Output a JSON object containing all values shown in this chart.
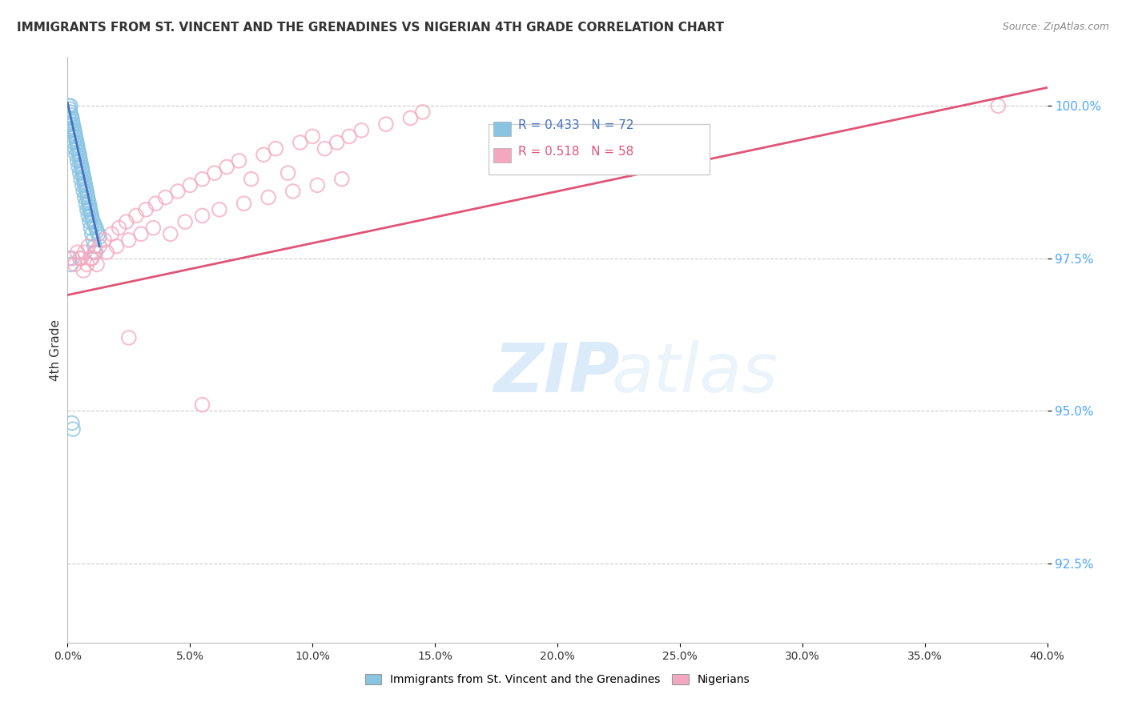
{
  "title": "IMMIGRANTS FROM ST. VINCENT AND THE GRENADINES VS NIGERIAN 4TH GRADE CORRELATION CHART",
  "source": "Source: ZipAtlas.com",
  "ylabel_label": "4th Grade",
  "xmin": 0.0,
  "xmax": 40.0,
  "ymin": 91.2,
  "ymax": 100.8,
  "yticks": [
    92.5,
    95.0,
    97.5,
    100.0
  ],
  "xticks": [
    0.0,
    5.0,
    10.0,
    15.0,
    20.0,
    25.0,
    30.0,
    35.0,
    40.0
  ],
  "legend1_label": "Immigrants from St. Vincent and the Grenadines",
  "legend2_label": "Nigerians",
  "r1": 0.433,
  "n1": 72,
  "r2": 0.518,
  "n2": 58,
  "blue_color": "#89c4e1",
  "pink_color": "#f4a8bf",
  "blue_line_color": "#4472c4",
  "pink_line_color": "#e05577",
  "watermark_zip": "ZIP",
  "watermark_atlas": "atlas",
  "blue_dots_x": [
    0.05,
    0.08,
    0.1,
    0.12,
    0.15,
    0.18,
    0.2,
    0.22,
    0.25,
    0.28,
    0.3,
    0.32,
    0.35,
    0.38,
    0.4,
    0.42,
    0.45,
    0.48,
    0.5,
    0.52,
    0.55,
    0.58,
    0.6,
    0.62,
    0.65,
    0.68,
    0.7,
    0.72,
    0.75,
    0.78,
    0.8,
    0.82,
    0.85,
    0.88,
    0.9,
    0.92,
    0.95,
    0.98,
    1.0,
    1.05,
    1.1,
    1.15,
    1.2,
    1.25,
    1.3,
    0.05,
    0.1,
    0.15,
    0.2,
    0.25,
    0.3,
    0.35,
    0.4,
    0.45,
    0.5,
    0.55,
    0.6,
    0.65,
    0.7,
    0.75,
    0.8,
    0.85,
    0.9,
    0.95,
    1.0,
    1.05,
    1.1,
    1.15,
    0.08,
    0.12,
    0.18,
    0.22
  ],
  "blue_dots_y": [
    100.0,
    99.95,
    99.9,
    100.0,
    99.85,
    99.8,
    99.75,
    99.7,
    99.65,
    99.6,
    99.55,
    99.5,
    99.45,
    99.4,
    99.35,
    99.3,
    99.25,
    99.2,
    99.15,
    99.1,
    99.05,
    99.0,
    98.95,
    98.9,
    98.85,
    98.8,
    98.75,
    98.7,
    98.65,
    98.6,
    98.55,
    98.5,
    98.45,
    98.4,
    98.35,
    98.3,
    98.25,
    98.2,
    98.15,
    98.1,
    98.05,
    98.0,
    97.95,
    97.9,
    97.85,
    99.8,
    99.7,
    99.6,
    99.5,
    99.4,
    99.3,
    99.2,
    99.1,
    99.0,
    98.9,
    98.8,
    98.7,
    98.6,
    98.5,
    98.4,
    98.3,
    98.2,
    98.1,
    98.0,
    97.9,
    97.8,
    97.7,
    97.6,
    97.5,
    97.4,
    94.8,
    94.7
  ],
  "pink_dots_x": [
    0.2,
    0.4,
    0.55,
    0.7,
    0.85,
    0.95,
    1.1,
    1.3,
    1.5,
    1.8,
    2.1,
    2.4,
    2.8,
    3.2,
    3.6,
    4.0,
    4.5,
    5.0,
    5.5,
    6.0,
    6.5,
    7.0,
    7.5,
    8.0,
    8.5,
    9.0,
    9.5,
    10.0,
    10.5,
    11.0,
    11.5,
    12.0,
    13.0,
    14.0,
    14.5,
    0.3,
    0.5,
    0.65,
    0.8,
    1.0,
    1.2,
    1.6,
    2.0,
    2.5,
    3.0,
    3.5,
    4.2,
    4.8,
    5.5,
    6.2,
    7.2,
    8.2,
    9.2,
    10.2,
    11.2,
    2.5,
    5.5,
    38.0
  ],
  "pink_dots_y": [
    97.5,
    97.6,
    97.5,
    97.6,
    97.7,
    97.5,
    97.6,
    97.7,
    97.8,
    97.9,
    98.0,
    98.1,
    98.2,
    98.3,
    98.4,
    98.5,
    98.6,
    98.7,
    98.8,
    98.9,
    99.0,
    99.1,
    98.8,
    99.2,
    99.3,
    98.9,
    99.4,
    99.5,
    99.3,
    99.4,
    99.5,
    99.6,
    99.7,
    99.8,
    99.9,
    97.4,
    97.5,
    97.3,
    97.4,
    97.5,
    97.4,
    97.6,
    97.7,
    97.8,
    97.9,
    98.0,
    97.9,
    98.1,
    98.2,
    98.3,
    98.4,
    98.5,
    98.6,
    98.7,
    98.8,
    96.2,
    95.1,
    100.0
  ],
  "blue_trend_x": [
    0.0,
    1.3
  ],
  "blue_trend_y": [
    100.05,
    97.7
  ],
  "pink_trend_x": [
    0.0,
    40.0
  ],
  "pink_trend_y": [
    96.9,
    100.3
  ]
}
